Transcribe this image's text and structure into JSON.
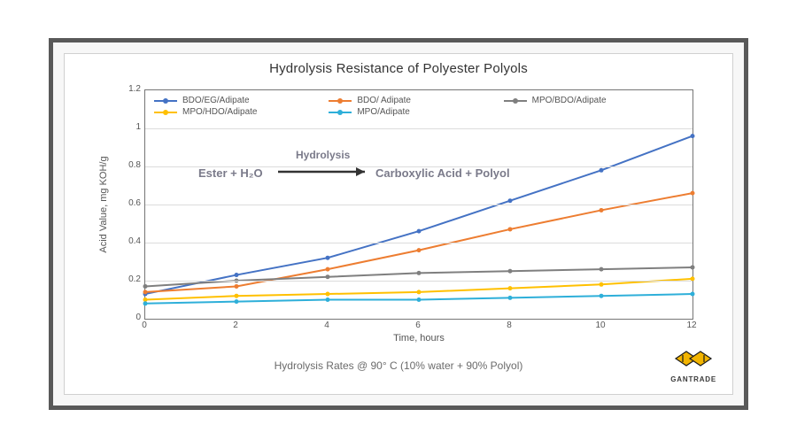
{
  "chart": {
    "type": "line",
    "title": "Hydrolysis Resistance of Polyester Polyols",
    "subtitle": "Hydrolysis Rates @ 90° C (10% water + 90% Polyol)",
    "xlabel": "Time, hours",
    "ylabel": "Acid Value, mg KOH/g",
    "title_fontsize": 15,
    "label_fontsize": 11,
    "tick_fontsize": 10,
    "background_color": "#ffffff",
    "grid_color": "#dcdcdc",
    "axis_color": "#757575",
    "x": [
      0,
      2,
      4,
      6,
      8,
      10,
      12
    ],
    "xlim": [
      0,
      12
    ],
    "ylim": [
      0,
      1.2
    ],
    "ytick_step": 0.2,
    "xtick_step": 2,
    "line_width": 2,
    "marker_size": 5,
    "marker_style": "circle",
    "series": [
      {
        "name": "BDO/EG/Adipate",
        "color": "#4472c4",
        "y": [
          0.13,
          0.23,
          0.32,
          0.46,
          0.62,
          0.78,
          0.96
        ]
      },
      {
        "name": "BDO/ Adipate",
        "color": "#ed7d31",
        "y": [
          0.14,
          0.17,
          0.26,
          0.36,
          0.47,
          0.57,
          0.66
        ]
      },
      {
        "name": "MPO/BDO/Adipate",
        "color": "#7f7f7f",
        "y": [
          0.17,
          0.2,
          0.22,
          0.24,
          0.25,
          0.26,
          0.27
        ]
      },
      {
        "name": "MPO/HDO/Adipate",
        "color": "#ffc000",
        "y": [
          0.1,
          0.12,
          0.13,
          0.14,
          0.16,
          0.18,
          0.21
        ]
      },
      {
        "name": "MPO/Adipate",
        "color": "#2eafd9",
        "y": [
          0.08,
          0.09,
          0.1,
          0.1,
          0.11,
          0.12,
          0.13
        ]
      }
    ],
    "legend_position": "top-inside",
    "legend_cols": 3,
    "annotations": {
      "hydrolysis_label": "Hydrolysis",
      "reaction_left": "Ester + H₂O",
      "reaction_right": "Carboxylic Acid + Polyol",
      "arrow_color": "#333333",
      "text_color": "#7a7a8a"
    }
  },
  "frame": {
    "outer_border_color": "#595959",
    "outer_border_width": 5,
    "outer_background": "#f7f7f7",
    "inner_border_color": "#d0d0d0",
    "inner_background": "#ffffff"
  },
  "logo": {
    "name": "GANTRADE",
    "primary_color": "#f2b400",
    "outline_color": "#1a1a1a"
  }
}
